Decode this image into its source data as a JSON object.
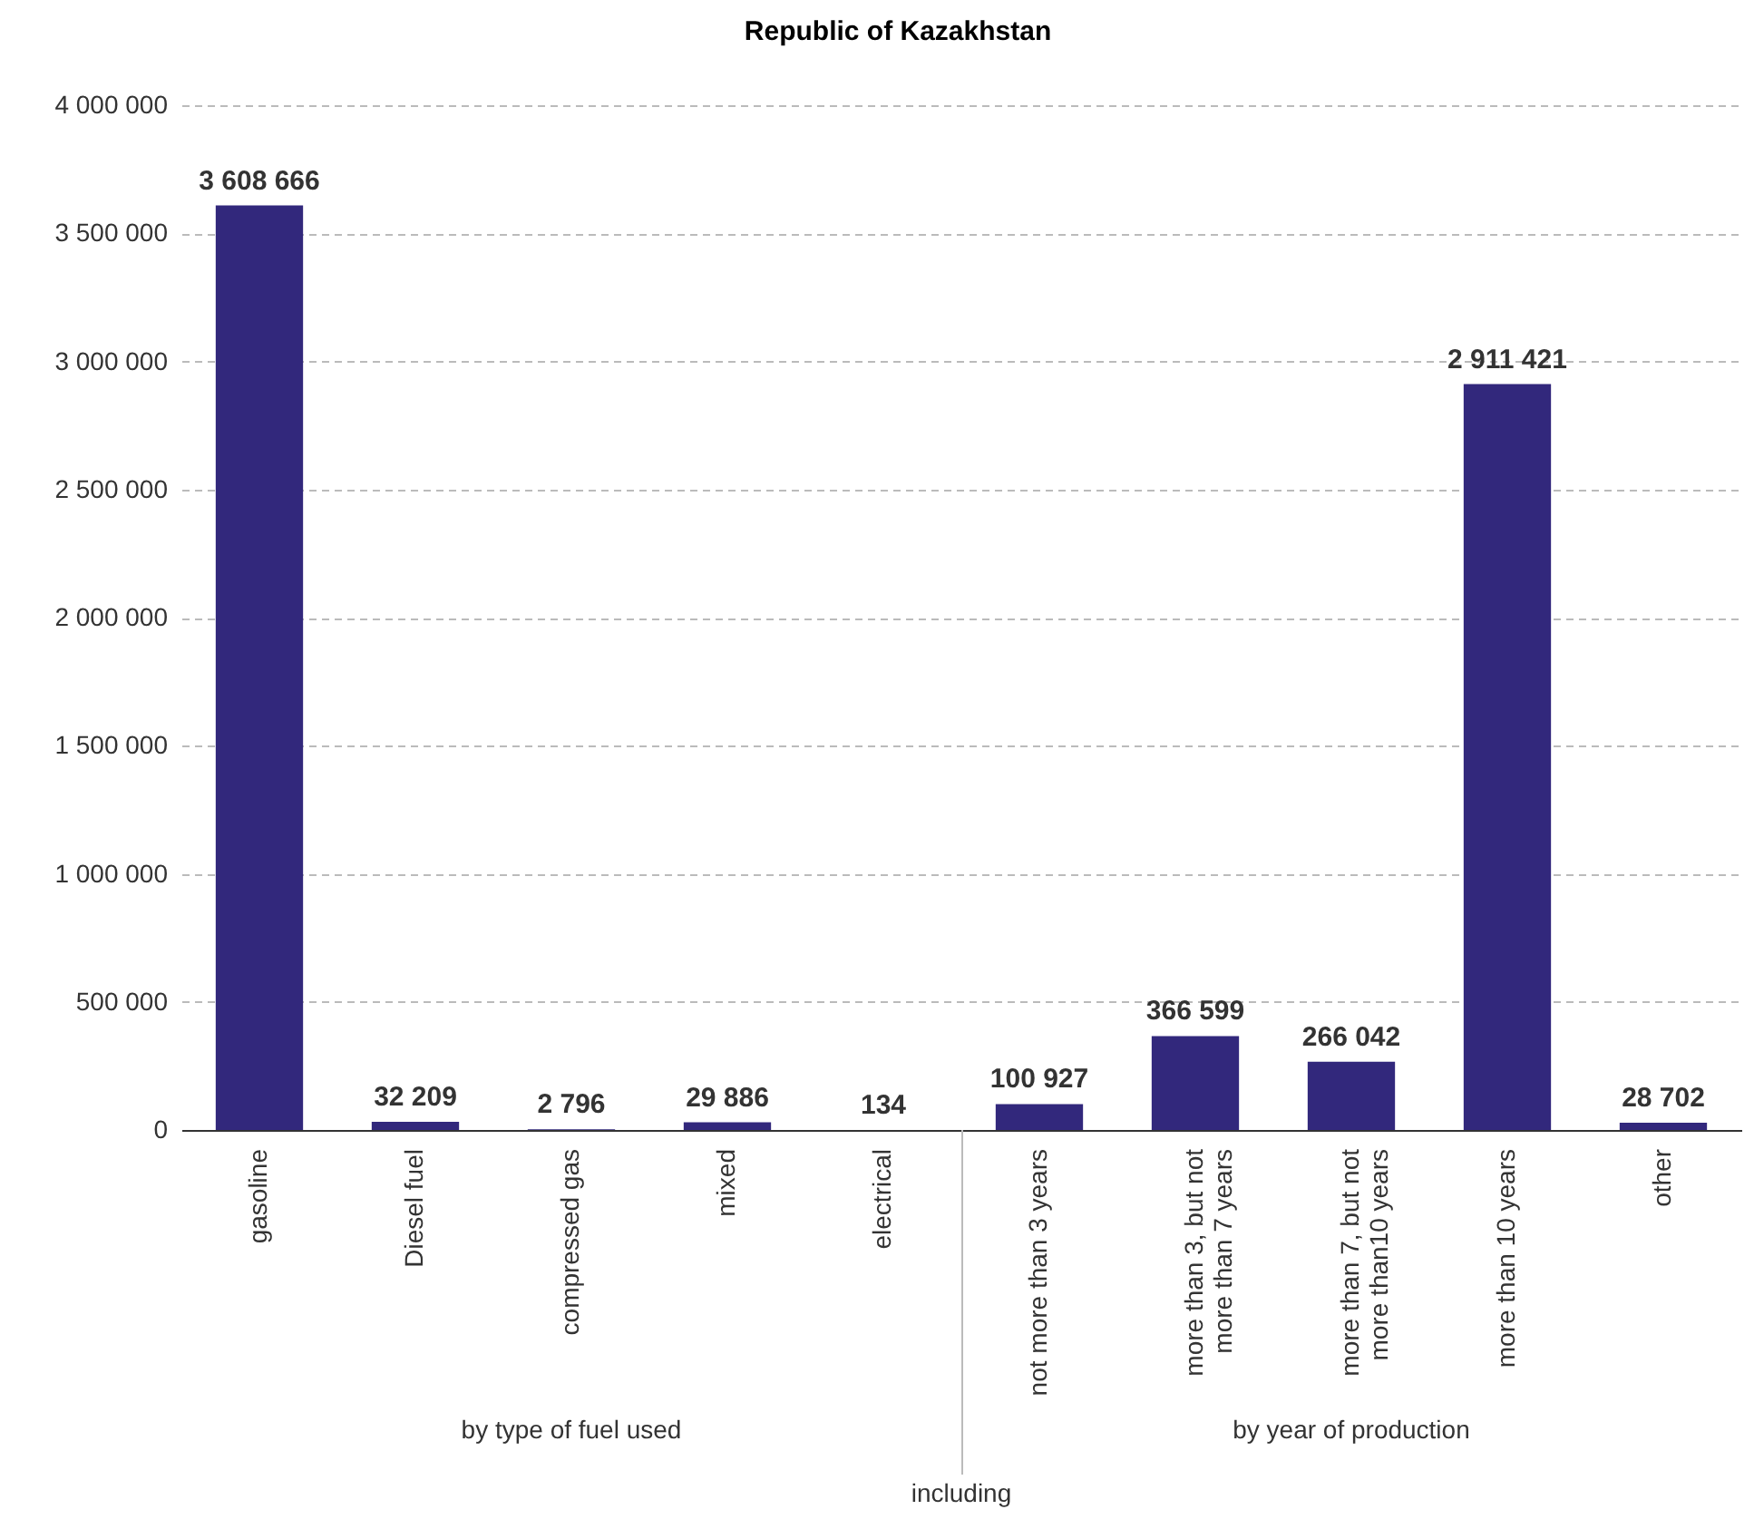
{
  "chart_data": {
    "type": "bar",
    "title": "Republic of Kazakhstan",
    "categories": [
      "gasoline",
      "Diesel fuel",
      "compressed gas",
      "mixed",
      "electrical",
      "not more than 3 years",
      "more than 3, but not more than 7 years",
      "more than 7, but not more than10 years",
      "more than 10 years",
      "other"
    ],
    "values": [
      3608666,
      32209,
      2796,
      29886,
      134,
      100927,
      366599,
      266042,
      2911421,
      28702
    ],
    "value_labels": [
      "3 608 666",
      "32 209",
      "2 796",
      "29 886",
      "134",
      "100 927",
      "366 599",
      "266 042",
      "2 911 421",
      "28 702"
    ],
    "color": "#32287c",
    "ylim": [
      0,
      4000000
    ],
    "yticks": [
      {
        "value": 0,
        "label": "0"
      },
      {
        "value": 500000,
        "label": "500 000"
      },
      {
        "value": 1000000,
        "label": "1 000 000"
      },
      {
        "value": 1500000,
        "label": "1 500 000"
      },
      {
        "value": 2000000,
        "label": "2 000 000"
      },
      {
        "value": 2500000,
        "label": "2 500 000"
      },
      {
        "value": 3000000,
        "label": "3 000 000"
      },
      {
        "value": 3500000,
        "label": "3 500 000"
      },
      {
        "value": 4000000,
        "label": "4 000 000"
      }
    ],
    "grid": "y",
    "annotations": [
      "by type of fuel used",
      "by year of production",
      "including"
    ]
  }
}
